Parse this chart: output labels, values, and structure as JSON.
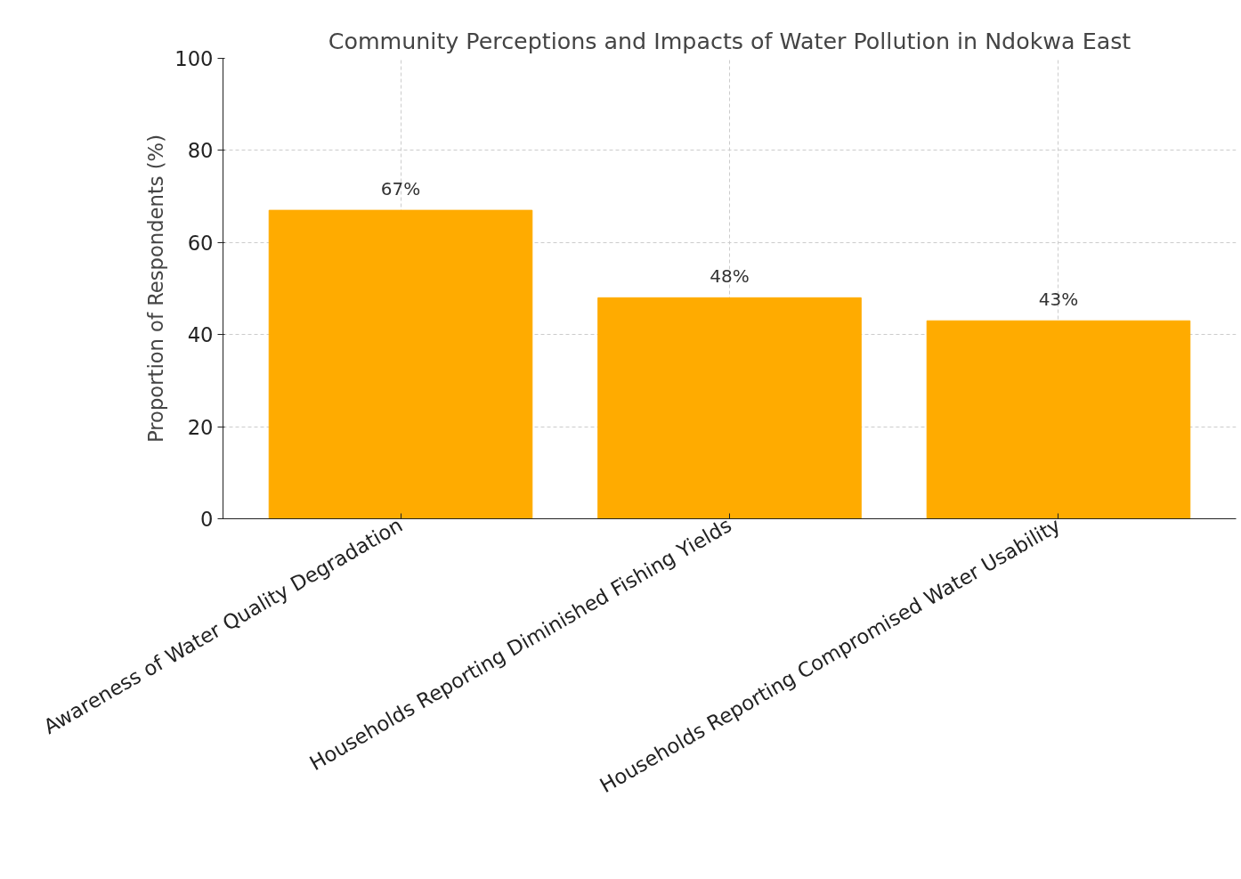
{
  "chart_data": {
    "type": "bar",
    "title": "Community Perceptions and Impacts of Water Pollution in Ndokwa East",
    "ylabel": "Proportion of Respondents (%)",
    "categories": [
      "Awareness of Water Quality Degradation",
      "Households Reporting Diminished Fishing Yields",
      "Households Reporting Compromised Water Usability"
    ],
    "values": [
      67,
      48,
      43
    ],
    "value_labels": [
      "67%",
      "48%",
      "43%"
    ],
    "color": "#ffab00",
    "ylim": [
      0,
      100
    ],
    "yticks": [
      0,
      20,
      40,
      60,
      80,
      100
    ],
    "grid": true
  }
}
